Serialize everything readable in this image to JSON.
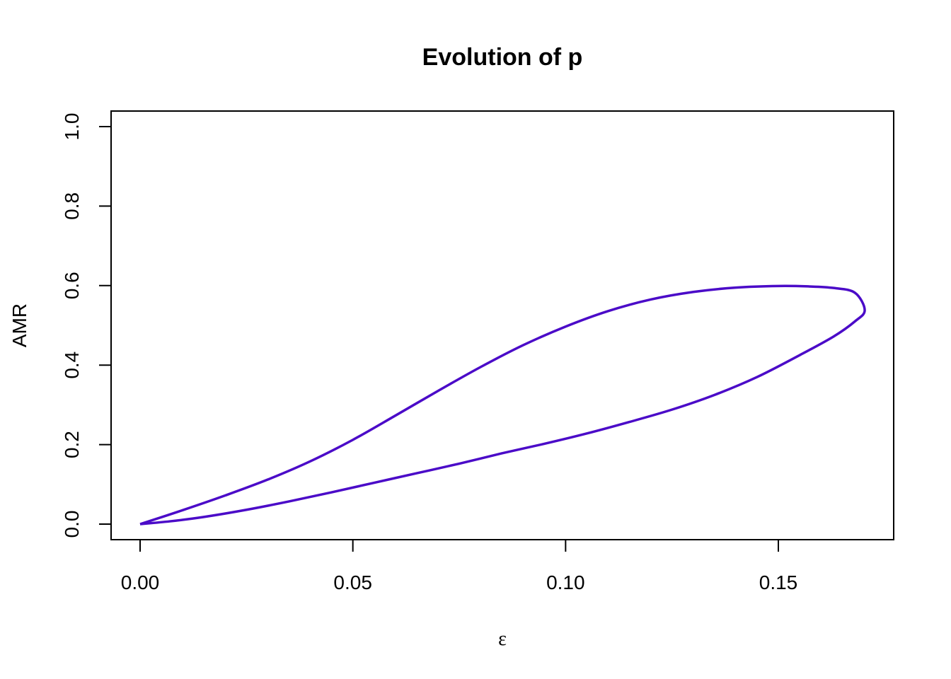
{
  "chart_data": {
    "type": "line",
    "title": "Evolution of p",
    "xlabel": "ε",
    "ylabel": "AMR",
    "xlim": [
      0.0,
      0.17
    ],
    "ylim": [
      0.0,
      1.0
    ],
    "x_ticks": [
      0.0,
      0.05,
      0.1,
      0.15
    ],
    "x_tick_labels": [
      "0.00",
      "0.05",
      "0.10",
      "0.15"
    ],
    "y_ticks": [
      0.0,
      0.2,
      0.4,
      0.6,
      0.8,
      1.0
    ],
    "y_tick_labels": [
      "0.0",
      "0.2",
      "0.4",
      "0.6",
      "0.8",
      "1.0"
    ],
    "grid": false,
    "legend": "none",
    "line_color": "#4B0BC8",
    "series": [
      {
        "x": [
          0.0,
          0.01,
          0.02,
          0.03,
          0.04,
          0.05,
          0.06,
          0.07,
          0.08,
          0.09,
          0.1,
          0.11,
          0.12,
          0.13,
          0.14,
          0.15,
          0.157,
          0.163,
          0.168,
          0.1703,
          0.168,
          0.163,
          0.155,
          0.145,
          0.135,
          0.125,
          0.115,
          0.105,
          0.095,
          0.085,
          0.075,
          0.065,
          0.055,
          0.045,
          0.035,
          0.025,
          0.015,
          0.007,
          0.0
        ],
        "y": [
          0.0,
          0.035,
          0.072,
          0.112,
          0.158,
          0.212,
          0.273,
          0.335,
          0.395,
          0.45,
          0.497,
          0.536,
          0.565,
          0.584,
          0.595,
          0.599,
          0.598,
          0.594,
          0.582,
          0.538,
          0.51,
          0.472,
          0.425,
          0.37,
          0.325,
          0.288,
          0.257,
          0.228,
          0.202,
          0.178,
          0.152,
          0.128,
          0.104,
          0.08,
          0.057,
          0.036,
          0.018,
          0.007,
          0.0
        ]
      }
    ]
  }
}
